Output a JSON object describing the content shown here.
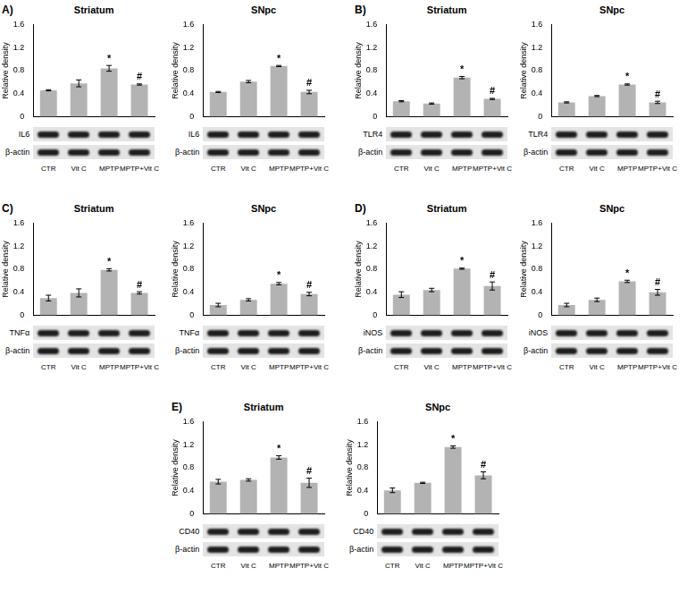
{
  "chart_data": [
    {
      "type": "bar",
      "panel": "A)",
      "title": "Striatum",
      "categories": [
        "CTR",
        "Vit C",
        "MPTP",
        "MPTP+Vit C"
      ],
      "values": [
        0.46,
        0.58,
        0.84,
        0.56
      ],
      "errors": [
        0.01,
        0.06,
        0.05,
        0.01
      ],
      "ylim": [
        0,
        1.6
      ],
      "yticks": [
        0,
        0.4,
        0.8,
        1.2,
        1.6
      ],
      "y_label": "Relative density",
      "color": "#b3b3b3",
      "grid": false,
      "tick_labels": "y",
      "annotations": [
        {
          "category": "MPTP",
          "text": "*"
        },
        {
          "category": "MPTP+Vit C",
          "text": "#"
        }
      ],
      "blots": [
        "IL6",
        "β-actin"
      ]
    },
    {
      "type": "bar",
      "title": "SNpc",
      "categories": [
        "CTR",
        "Vit C",
        "MPTP",
        "MPTP+Vit C"
      ],
      "values": [
        0.43,
        0.61,
        0.88,
        0.43
      ],
      "errors": [
        0.01,
        0.02,
        0.01,
        0.03
      ],
      "ylim": [
        0,
        1.6
      ],
      "yticks": [
        0,
        0.4,
        0.8,
        1.2,
        1.6
      ],
      "y_label": "Relative density",
      "color": "#b3b3b3",
      "grid": false,
      "tick_labels": "y",
      "annotations": [
        {
          "category": "MPTP",
          "text": "*"
        },
        {
          "category": "MPTP+Vit C",
          "text": "#"
        }
      ],
      "blots": [
        "IL6",
        "β-actin"
      ]
    },
    {
      "type": "bar",
      "panel": "B)",
      "title": "Striatum",
      "categories": [
        "CTR",
        "Vit C",
        "MPTP",
        "MPTP+Vit C"
      ],
      "values": [
        0.27,
        0.23,
        0.68,
        0.31
      ],
      "errors": [
        0.01,
        0.01,
        0.02,
        0.01
      ],
      "ylim": [
        0,
        1.6
      ],
      "yticks": [
        0,
        0.4,
        0.8,
        1.2,
        1.6
      ],
      "y_label": "Relative density",
      "color": "#b3b3b3",
      "grid": false,
      "tick_labels": "y",
      "annotations": [
        {
          "category": "MPTP",
          "text": "*"
        },
        {
          "category": "MPTP+Vit C",
          "text": "#"
        }
      ],
      "blots": [
        "TLR4",
        "β-actin"
      ]
    },
    {
      "type": "bar",
      "title": "SNpc",
      "categories": [
        "CTR",
        "Vit C",
        "MPTP",
        "MPTP+Vit C"
      ],
      "values": [
        0.25,
        0.36,
        0.56,
        0.25
      ],
      "errors": [
        0.01,
        0.01,
        0.01,
        0.02
      ],
      "ylim": [
        0,
        1.6
      ],
      "yticks": [
        0,
        0.4,
        0.8,
        1.2,
        1.6
      ],
      "y_label": "Relative density",
      "color": "#b3b3b3",
      "grid": false,
      "tick_labels": "y",
      "annotations": [
        {
          "category": "MPTP",
          "text": "*"
        },
        {
          "category": "MPTP+Vit C",
          "text": "#"
        }
      ],
      "blots": [
        "TLR4",
        "β-actin"
      ]
    },
    {
      "type": "bar",
      "panel": "C)",
      "title": "Striatum",
      "categories": [
        "CTR",
        "Vit C",
        "MPTP",
        "MPTP+Vit C"
      ],
      "values": [
        0.3,
        0.39,
        0.79,
        0.39
      ],
      "errors": [
        0.05,
        0.07,
        0.02,
        0.02
      ],
      "ylim": [
        0,
        1.6
      ],
      "yticks": [
        0,
        0.4,
        0.8,
        1.2,
        1.6
      ],
      "y_label": "Relative density",
      "color": "#b3b3b3",
      "grid": false,
      "tick_labels": "y",
      "annotations": [
        {
          "category": "MPTP",
          "text": "*"
        },
        {
          "category": "MPTP+Vit C",
          "text": "#"
        }
      ],
      "blots": [
        "TNFα",
        "β-actin"
      ]
    },
    {
      "type": "bar",
      "title": "SNpc",
      "categories": [
        "CTR",
        "Vit C",
        "MPTP",
        "MPTP+Vit C"
      ],
      "values": [
        0.18,
        0.27,
        0.55,
        0.37
      ],
      "errors": [
        0.03,
        0.02,
        0.02,
        0.03
      ],
      "ylim": [
        0,
        1.6
      ],
      "yticks": [
        0,
        0.4,
        0.8,
        1.2,
        1.6
      ],
      "y_label": "Relative density",
      "color": "#b3b3b3",
      "grid": false,
      "tick_labels": "y",
      "annotations": [
        {
          "category": "MPTP",
          "text": "*"
        },
        {
          "category": "MPTP+Vit C",
          "text": "#"
        }
      ],
      "blots": [
        "TNFα",
        "β-actin"
      ]
    },
    {
      "type": "bar",
      "panel": "D)",
      "title": "Striatum",
      "categories": [
        "CTR",
        "Vit C",
        "MPTP",
        "MPTP+Vit C"
      ],
      "values": [
        0.36,
        0.44,
        0.81,
        0.51
      ],
      "errors": [
        0.05,
        0.03,
        0.01,
        0.07
      ],
      "ylim": [
        0,
        1.6
      ],
      "yticks": [
        0,
        0.4,
        0.8,
        1.2,
        1.6
      ],
      "y_label": "Relative density",
      "color": "#b3b3b3",
      "grid": false,
      "tick_labels": "y",
      "annotations": [
        {
          "category": "MPTP",
          "text": "*"
        },
        {
          "category": "MPTP+Vit C",
          "text": "#"
        }
      ],
      "blots": [
        "iNOS",
        "β-actin"
      ]
    },
    {
      "type": "bar",
      "title": "SNpc",
      "categories": [
        "CTR",
        "Vit C",
        "MPTP",
        "MPTP+Vit C"
      ],
      "values": [
        0.18,
        0.27,
        0.59,
        0.4
      ],
      "errors": [
        0.03,
        0.03,
        0.02,
        0.05
      ],
      "ylim": [
        0,
        1.6
      ],
      "yticks": [
        0,
        0.4,
        0.8,
        1.2,
        1.6
      ],
      "y_label": "Relative density",
      "color": "#b3b3b3",
      "grid": false,
      "tick_labels": "y",
      "annotations": [
        {
          "category": "MPTP",
          "text": "*"
        },
        {
          "category": "MPTP+Vit C",
          "text": "#"
        }
      ],
      "blots": [
        "iNOS",
        "β-actin"
      ]
    },
    {
      "type": "bar",
      "panel": "E)",
      "title": "Striatum",
      "categories": [
        "CTR",
        "Vit C",
        "MPTP",
        "MPTP+Vit C"
      ],
      "values": [
        0.56,
        0.59,
        0.98,
        0.54
      ],
      "errors": [
        0.04,
        0.02,
        0.03,
        0.08
      ],
      "ylim": [
        0,
        1.6
      ],
      "yticks": [
        0,
        0.4,
        0.8,
        1.2,
        1.6
      ],
      "y_label": "Relative density",
      "color": "#b3b3b3",
      "grid": false,
      "tick_labels": "y",
      "annotations": [
        {
          "category": "MPTP",
          "text": "*"
        },
        {
          "category": "MPTP+Vit C",
          "text": "#"
        }
      ],
      "blots": [
        "CD40",
        "β-actin"
      ]
    },
    {
      "type": "bar",
      "title": "SNpc",
      "categories": [
        "CTR",
        "Vit C",
        "MPTP",
        "MPTP+Vit C"
      ],
      "values": [
        0.41,
        0.54,
        1.16,
        0.67
      ],
      "errors": [
        0.04,
        0.01,
        0.02,
        0.06
      ],
      "ylim": [
        0,
        1.6
      ],
      "yticks": [
        0,
        0.4,
        0.8,
        1.2,
        1.6
      ],
      "y_label": "Relative density",
      "color": "#b3b3b3",
      "grid": false,
      "tick_labels": "y",
      "annotations": [
        {
          "category": "MPTP",
          "text": "*"
        },
        {
          "category": "MPTP+Vit C",
          "text": "#"
        }
      ],
      "blots": [
        "CD40",
        "β-actin"
      ]
    }
  ]
}
